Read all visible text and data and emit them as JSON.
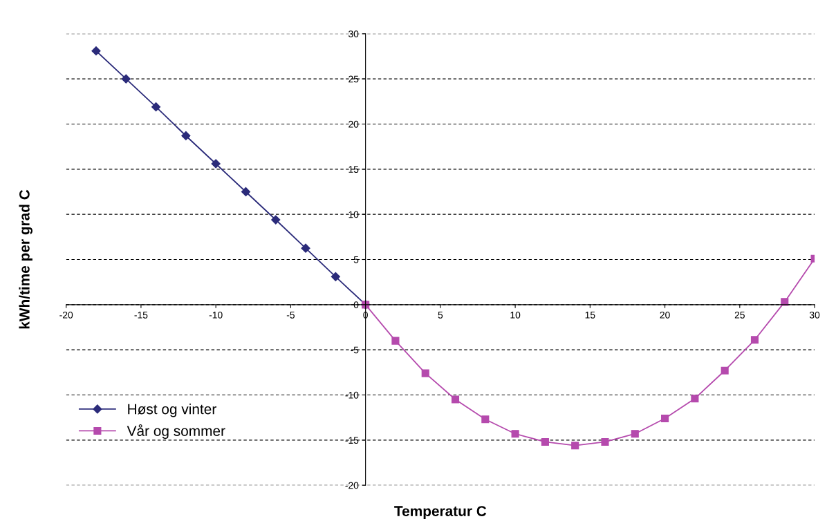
{
  "chart_data": {
    "type": "line",
    "xlabel": "Temperatur C",
    "ylabel": "kWh/time per grad C",
    "xlim": [
      -20,
      30
    ],
    "ylim": [
      -20,
      30
    ],
    "xticks": [
      -20,
      -15,
      -10,
      -5,
      0,
      5,
      10,
      15,
      20,
      25,
      30
    ],
    "yticks": [
      -20,
      -15,
      -10,
      -5,
      0,
      5,
      10,
      15,
      20,
      25,
      30
    ],
    "grid": "y",
    "legend": "bottom left",
    "line_style": "solid",
    "series": [
      {
        "name": "Høst og vinter",
        "color": "#2b2b7a",
        "marker": "diamond",
        "x": [
          -18,
          -16,
          -14,
          -12,
          -10,
          -8,
          -6,
          -4,
          -2,
          0
        ],
        "values": [
          28.1,
          25.0,
          21.9,
          18.7,
          15.6,
          12.5,
          9.4,
          6.25,
          3.1,
          0
        ]
      },
      {
        "name": "Vår og sommer",
        "color": "#b54aad",
        "marker": "square",
        "x": [
          0,
          2,
          4,
          6,
          8,
          10,
          12,
          14,
          16,
          18,
          20,
          22,
          24,
          26,
          28,
          30
        ],
        "values": [
          0,
          -4.0,
          -7.6,
          -10.5,
          -12.7,
          -14.3,
          -15.2,
          -15.6,
          -15.2,
          -14.3,
          -12.6,
          -10.4,
          -7.3,
          -3.9,
          0.3,
          5.1
        ]
      }
    ]
  }
}
